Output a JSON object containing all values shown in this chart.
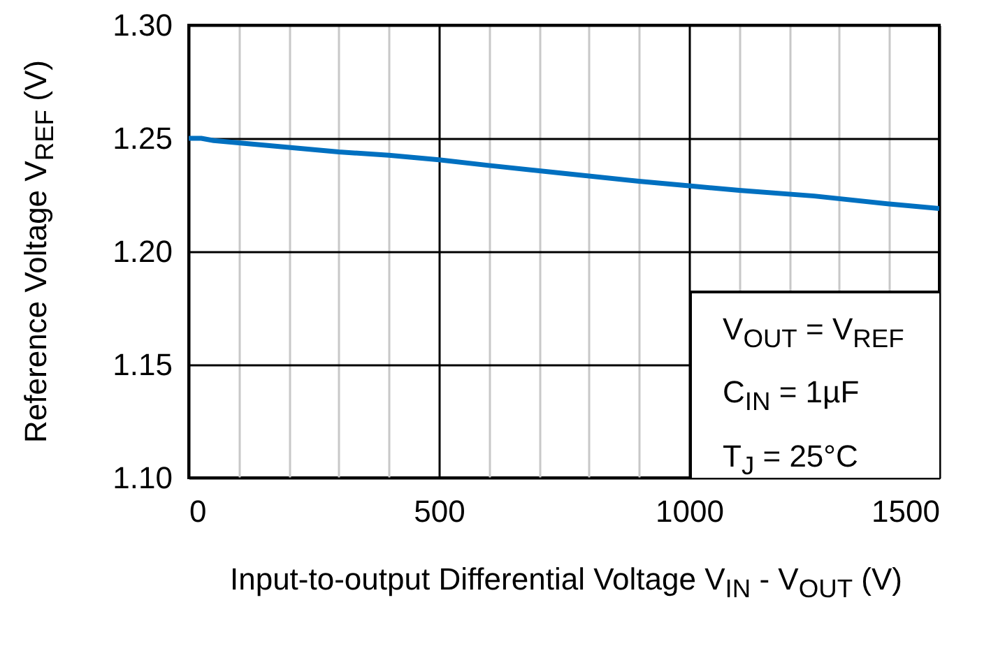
{
  "chart_data": {
    "type": "line",
    "xlabel": "Input-to-output Differential Voltage V$_{IN}$ - V$_{OUT}$ (V)",
    "ylabel": "Reference Voltage V$_{REF}$ (V)",
    "x": [
      0,
      25,
      50,
      100,
      200,
      300,
      400,
      500,
      600,
      750,
      900,
      1000,
      1100,
      1250,
      1400,
      1500
    ],
    "series": [
      {
        "color": "#0070c0",
        "values": [
          1.25,
          1.25,
          1.249,
          1.248,
          1.246,
          1.244,
          1.2425,
          1.2405,
          1.238,
          1.2345,
          1.231,
          1.229,
          1.227,
          1.2245,
          1.221,
          1.219
        ]
      }
    ],
    "xlim": [
      0,
      1500
    ],
    "ylim": [
      1.1,
      1.3
    ],
    "xticks": [
      0,
      {
        "value": 100,
        "label": null
      },
      {
        "value": 200,
        "label": null
      },
      {
        "value": 300,
        "label": null
      },
      {
        "value": 400,
        "label": null
      },
      500,
      {
        "value": 600,
        "label": null
      },
      {
        "value": 700,
        "label": null
      },
      {
        "value": 800,
        "label": null
      },
      {
        "value": 900,
        "label": null
      },
      1000,
      {
        "value": 1100,
        "label": null
      },
      {
        "value": 1200,
        "label": null
      },
      {
        "value": 1300,
        "label": null
      },
      {
        "value": 1400,
        "label": null
      },
      1500
    ],
    "yticks": [
      {
        "value": 1.1,
        "label": "1.10"
      },
      {
        "value": 1.15,
        "label": "1.15"
      },
      {
        "value": 1.2,
        "label": "1.20"
      },
      {
        "value": 1.25,
        "label": "1.25"
      },
      {
        "value": 1.3,
        "label": "1.30"
      }
    ],
    "grid": true,
    "marker": "none",
    "line_style": "solid",
    "annotations": [
      "V$_{OUT}$ = V$_{REF}$",
      "C$_{IN}$ = 1µF",
      "T$_{J}$ = 25°C"
    ]
  }
}
